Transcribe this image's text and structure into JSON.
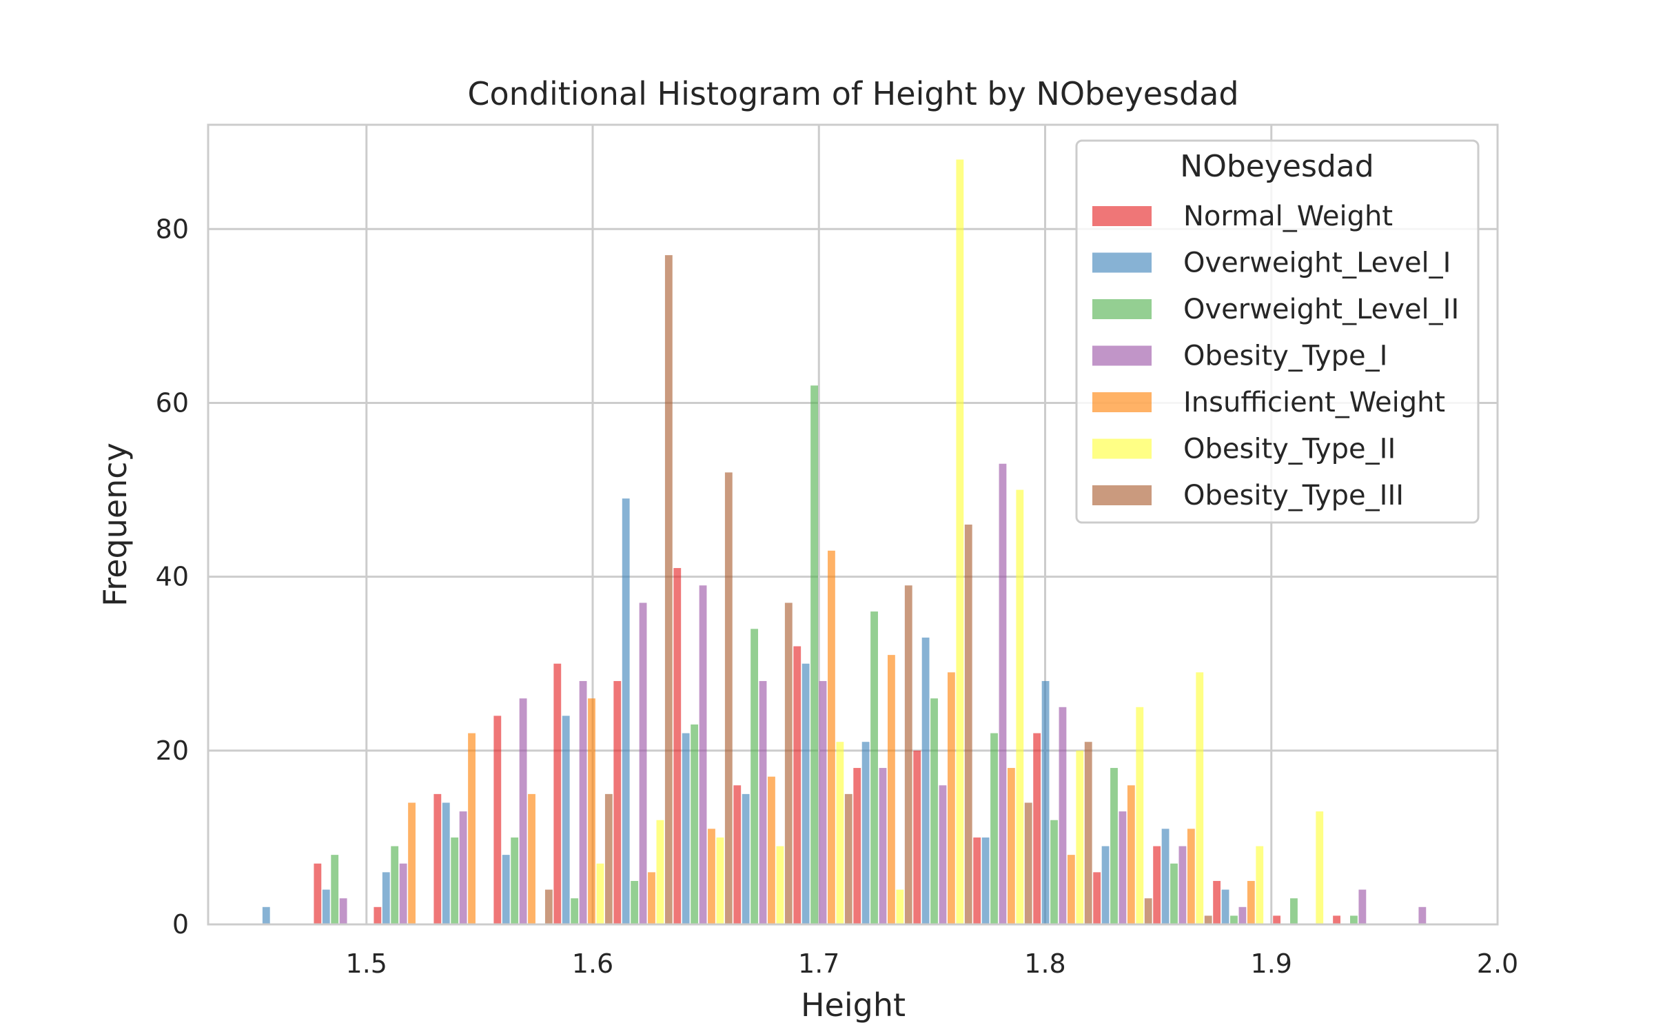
{
  "chart_data": {
    "type": "bar",
    "title": "Conditional Histogram of Height by NObeyesdad",
    "xlabel": "Height",
    "ylabel": "Frequency",
    "xlim": [
      1.43,
      2.0
    ],
    "ylim": [
      0,
      92
    ],
    "xticks": [
      1.5,
      1.6,
      1.7,
      1.8,
      1.9,
      2.0
    ],
    "yticks": [
      0,
      20,
      40,
      60,
      80
    ],
    "grid": true,
    "legend": {
      "title": "NObeyesdad",
      "position": "top-right"
    },
    "bin_start": 1.45,
    "bin_width": 0.0265,
    "series": [
      {
        "name": "Normal_Weight",
        "color": "#e41a1c",
        "values": [
          0,
          7,
          2,
          15,
          24,
          30,
          28,
          41,
          16,
          32,
          18,
          20,
          10,
          22,
          6,
          9,
          5,
          1,
          1,
          0
        ]
      },
      {
        "name": "Overweight_Level_I",
        "color": "#377eb8",
        "values": [
          2,
          4,
          6,
          14,
          8,
          24,
          49,
          22,
          15,
          30,
          21,
          33,
          10,
          28,
          9,
          11,
          4,
          0,
          0,
          0
        ]
      },
      {
        "name": "Overweight_Level_II",
        "color": "#4daf4a",
        "values": [
          0,
          8,
          9,
          10,
          10,
          3,
          5,
          23,
          34,
          62,
          36,
          26,
          22,
          12,
          18,
          7,
          1,
          3,
          1,
          0
        ]
      },
      {
        "name": "Obesity_Type_I",
        "color": "#984ea3",
        "values": [
          0,
          3,
          7,
          13,
          26,
          28,
          37,
          39,
          28,
          28,
          18,
          16,
          53,
          25,
          13,
          9,
          2,
          0,
          4,
          2
        ]
      },
      {
        "name": "Insufficient_Weight",
        "color": "#ff7f00",
        "values": [
          0,
          0,
          14,
          22,
          15,
          26,
          6,
          11,
          17,
          43,
          31,
          29,
          18,
          8,
          16,
          11,
          5,
          0,
          0,
          0
        ]
      },
      {
        "name": "Obesity_Type_II",
        "color": "#ffff33",
        "values": [
          0,
          0,
          0,
          0,
          0,
          7,
          12,
          10,
          9,
          21,
          4,
          88,
          50,
          20,
          25,
          29,
          9,
          13,
          0,
          0
        ]
      },
      {
        "name": "Obesity_Type_III",
        "color": "#a65628",
        "values": [
          0,
          0,
          0,
          0,
          4,
          15,
          77,
          52,
          37,
          15,
          39,
          46,
          14,
          21,
          3,
          1,
          0,
          0,
          0,
          0
        ]
      }
    ]
  }
}
